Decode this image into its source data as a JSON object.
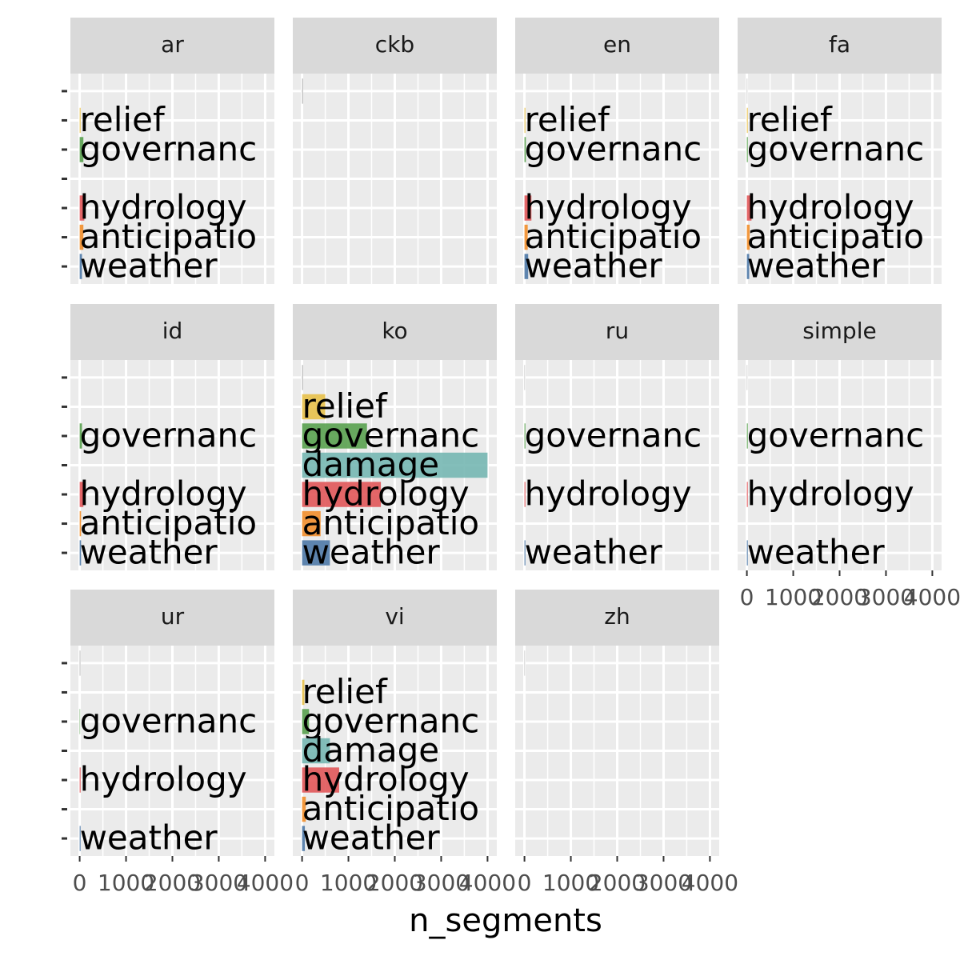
{
  "chart_data": {
    "type": "faceted-bar",
    "x_label": "n_segments",
    "categories": [
      null,
      "relief",
      "governanc",
      "damage",
      "hydrology",
      "anticipatio",
      "weather"
    ],
    "colors": [
      "#aaaaaa",
      "#e8c14a",
      "#59a14f",
      "#76b7b2",
      "#e15759",
      "#f28e2b",
      "#4e79a7"
    ],
    "xlim": [
      -200,
      4200
    ],
    "xticks": [
      0,
      1000,
      2000,
      3000,
      4000
    ],
    "grid": true,
    "facets": [
      {
        "name": "ar",
        "values": [
          null,
          20,
          80,
          null,
          100,
          80,
          50
        ]
      },
      {
        "name": "ckb",
        "values": [
          20,
          null,
          null,
          null,
          null,
          null,
          null
        ]
      },
      {
        "name": "en",
        "values": [
          null,
          20,
          30,
          null,
          150,
          70,
          80
        ]
      },
      {
        "name": "fa",
        "values": [
          10,
          20,
          20,
          null,
          100,
          60,
          50
        ]
      },
      {
        "name": "id",
        "values": [
          null,
          null,
          50,
          null,
          80,
          30,
          30
        ]
      },
      {
        "name": "ko",
        "values": [
          20,
          500,
          1400,
          4000,
          1700,
          400,
          600
        ]
      },
      {
        "name": "ru",
        "values": [
          10,
          null,
          20,
          null,
          20,
          null,
          20
        ]
      },
      {
        "name": "simple",
        "values": [
          10,
          null,
          20,
          null,
          20,
          null,
          20
        ]
      },
      {
        "name": "ur",
        "values": [
          15,
          null,
          10,
          null,
          20,
          null,
          20
        ]
      },
      {
        "name": "vi",
        "values": [
          null,
          50,
          150,
          600,
          800,
          80,
          60
        ]
      },
      {
        "name": "zh",
        "values": [
          10,
          null,
          null,
          null,
          null,
          null,
          null
        ]
      }
    ]
  }
}
